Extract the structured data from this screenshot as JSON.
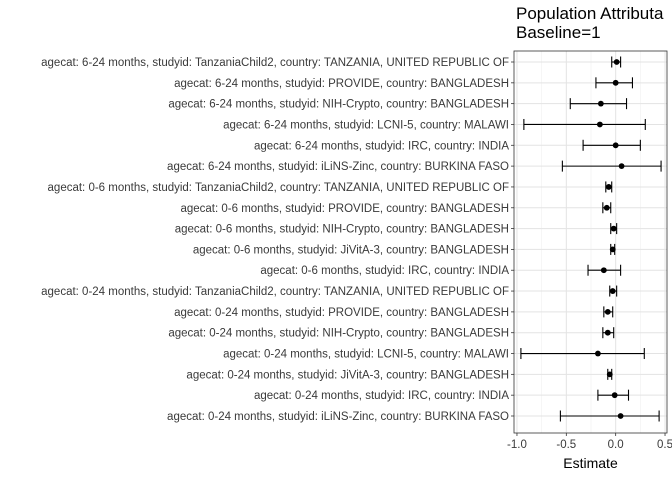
{
  "chart_data": {
    "type": "scatter",
    "subtype": "forest-plot",
    "title_lines": [
      "Population Attributa",
      "Baseline=1"
    ],
    "xlabel": "Estimate",
    "ylabel": "",
    "xlim": [
      -1.03,
      0.52
    ],
    "xticks": [
      -1.0,
      -0.5,
      0.0,
      0.5
    ],
    "xtick_labels": [
      "-1.0",
      "-0.5",
      "0.0",
      "0.5"
    ],
    "grid": true,
    "rows": [
      {
        "label": "agecat: 6-24 months, studyid: TanzaniaChild2, country: TANZANIA, UNITED REPUBLIC OF",
        "est": 0.01,
        "lo": -0.04,
        "hi": 0.05
      },
      {
        "label": "agecat: 6-24 months, studyid: PROVIDE, country: BANGLADESH",
        "est": 0.0,
        "lo": -0.2,
        "hi": 0.17
      },
      {
        "label": "agecat: 6-24 months, studyid: NIH-Crypto, country: BANGLADESH",
        "est": -0.15,
        "lo": -0.46,
        "hi": 0.11
      },
      {
        "label": "agecat: 6-24 months, studyid: LCNI-5, country: MALAWI",
        "est": -0.16,
        "lo": -0.93,
        "hi": 0.3
      },
      {
        "label": "agecat: 6-24 months, studyid: IRC, country: INDIA",
        "est": 0.0,
        "lo": -0.33,
        "hi": 0.25
      },
      {
        "label": "agecat: 6-24 months, studyid: iLiNS-Zinc, country: BURKINA FASO",
        "est": 0.06,
        "lo": -0.54,
        "hi": 0.46
      },
      {
        "label": "agecat: 0-6 months, studyid: TanzaniaChild2, country: TANZANIA, UNITED REPUBLIC OF",
        "est": -0.07,
        "lo": -0.1,
        "hi": -0.04
      },
      {
        "label": "agecat: 0-6 months, studyid: PROVIDE, country: BANGLADESH",
        "est": -0.09,
        "lo": -0.13,
        "hi": -0.05
      },
      {
        "label": "agecat: 0-6 months, studyid: NIH-Crypto, country: BANGLADESH",
        "est": -0.02,
        "lo": -0.05,
        "hi": 0.01
      },
      {
        "label": "agecat: 0-6 months, studyid: JiVitA-3, country: BANGLADESH",
        "est": -0.03,
        "lo": -0.05,
        "hi": -0.01
      },
      {
        "label": "agecat: 0-6 months, studyid: IRC, country: INDIA",
        "est": -0.12,
        "lo": -0.28,
        "hi": 0.05
      },
      {
        "label": "agecat: 0-24 months, studyid: TanzaniaChild2, country: TANZANIA, UNITED REPUBLIC OF",
        "est": -0.03,
        "lo": -0.06,
        "hi": 0.01
      },
      {
        "label": "agecat: 0-24 months, studyid: PROVIDE, country: BANGLADESH",
        "est": -0.08,
        "lo": -0.12,
        "hi": -0.03
      },
      {
        "label": "agecat: 0-24 months, studyid: NIH-Crypto, country: BANGLADESH",
        "est": -0.08,
        "lo": -0.13,
        "hi": -0.02
      },
      {
        "label": "agecat: 0-24 months, studyid: LCNI-5, country: MALAWI",
        "est": -0.18,
        "lo": -0.96,
        "hi": 0.29
      },
      {
        "label": "agecat: 0-24 months, studyid: JiVitA-3, country: BANGLADESH",
        "est": -0.06,
        "lo": -0.08,
        "hi": -0.04
      },
      {
        "label": "agecat: 0-24 months, studyid: IRC, country: INDIA",
        "est": -0.01,
        "lo": -0.18,
        "hi": 0.13
      },
      {
        "label": "agecat: 0-24 months, studyid: iLiNS-Zinc, country: BURKINA FASO",
        "est": 0.05,
        "lo": -0.56,
        "hi": 0.44
      }
    ]
  }
}
